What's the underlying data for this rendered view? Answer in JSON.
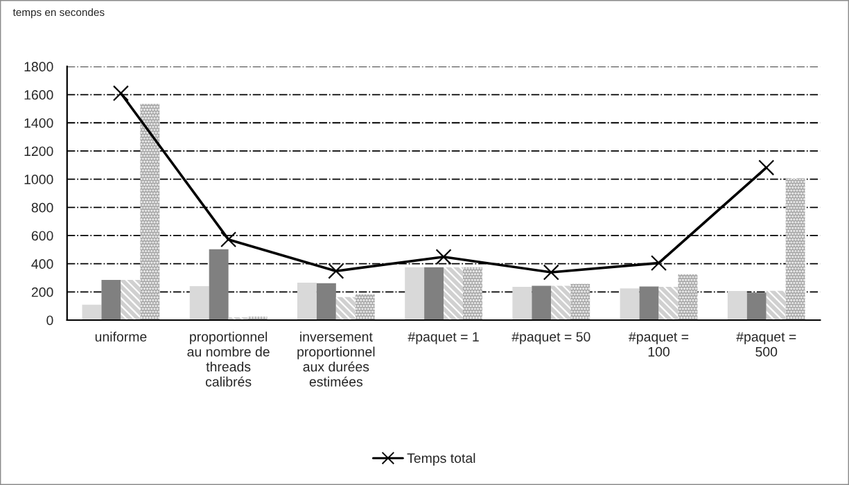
{
  "chart_data": {
    "type": "bar",
    "ylabel": "temps en secondes",
    "categories": [
      "uniforme",
      "proportionnel\nau nombre de\nthreads\ncalibrés",
      "inversement\nproportionnel\naux durées\nestimées",
      "#paquet = 1",
      "#paquet = 50",
      "#paquet =\n100",
      "#paquet =\n500"
    ],
    "series": [
      {
        "color": "#d9d9d9",
        "values": [
          110,
          241,
          266,
          375,
          236,
          225,
          207
        ]
      },
      {
        "color": "#808080",
        "values": [
          285,
          503,
          262,
          375,
          243,
          238,
          195
        ]
      },
      {
        "color": "#d0d0d0",
        "values": [
          285,
          20,
          164,
          375,
          243,
          236,
          208
        ]
      },
      {
        "color": "#a6a6a6",
        "values": [
          1535,
          25,
          184,
          375,
          257,
          326,
          1003
        ]
      },
      {
        "type": "line",
        "name": "Temps total",
        "color": "#000000",
        "values": [
          1610,
          572,
          348,
          449,
          339,
          405,
          1082
        ]
      }
    ],
    "ylim": [
      0,
      1800
    ],
    "yticks": [
      0,
      200,
      400,
      600,
      800,
      1000,
      1200,
      1400,
      1600,
      1800
    ],
    "grid": "y",
    "legend": "bottom",
    "marker": "cross"
  }
}
